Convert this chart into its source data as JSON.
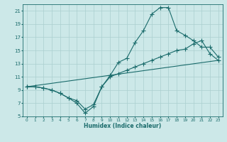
{
  "xlabel": "Humidex (Indice chaleur)",
  "ylabel": "",
  "bg_color": "#cce8e8",
  "line_color": "#1a6b6b",
  "grid_color": "#aacfcf",
  "xlim": [
    -0.5,
    23.5
  ],
  "ylim": [
    5,
    22
  ],
  "xticks": [
    0,
    1,
    2,
    3,
    4,
    5,
    6,
    7,
    8,
    9,
    10,
    11,
    12,
    13,
    14,
    15,
    16,
    17,
    18,
    19,
    20,
    21,
    22,
    23
  ],
  "yticks": [
    5,
    7,
    9,
    11,
    13,
    15,
    17,
    19,
    21
  ],
  "line1_x": [
    0,
    1,
    2,
    3,
    4,
    5,
    6,
    7,
    8,
    9,
    10,
    11,
    12,
    13,
    14,
    15,
    16,
    17,
    18,
    19,
    20,
    21,
    22,
    23
  ],
  "line1_y": [
    9.5,
    9.5,
    9.3,
    9.0,
    8.5,
    7.8,
    7.4,
    6.1,
    6.8,
    9.5,
    11.2,
    13.2,
    13.8,
    16.2,
    18.0,
    20.5,
    21.5,
    21.5,
    18.0,
    17.3,
    16.5,
    15.5,
    15.5,
    14.0
  ],
  "line2_x": [
    0,
    1,
    2,
    3,
    4,
    5,
    6,
    7,
    8,
    9,
    10,
    11,
    12,
    13,
    14,
    15,
    16,
    17,
    18,
    19,
    20,
    21,
    22,
    23
  ],
  "line2_y": [
    9.5,
    9.5,
    9.3,
    9.0,
    8.5,
    7.8,
    7.0,
    5.5,
    6.5,
    9.5,
    11.0,
    11.5,
    12.0,
    12.5,
    13.0,
    13.5,
    14.0,
    14.5,
    15.0,
    15.2,
    16.0,
    16.5,
    14.5,
    13.5
  ],
  "line3_x": [
    0,
    23
  ],
  "line3_y": [
    9.5,
    13.5
  ],
  "marker": "+",
  "markersize": 4.0,
  "linewidth": 0.8
}
